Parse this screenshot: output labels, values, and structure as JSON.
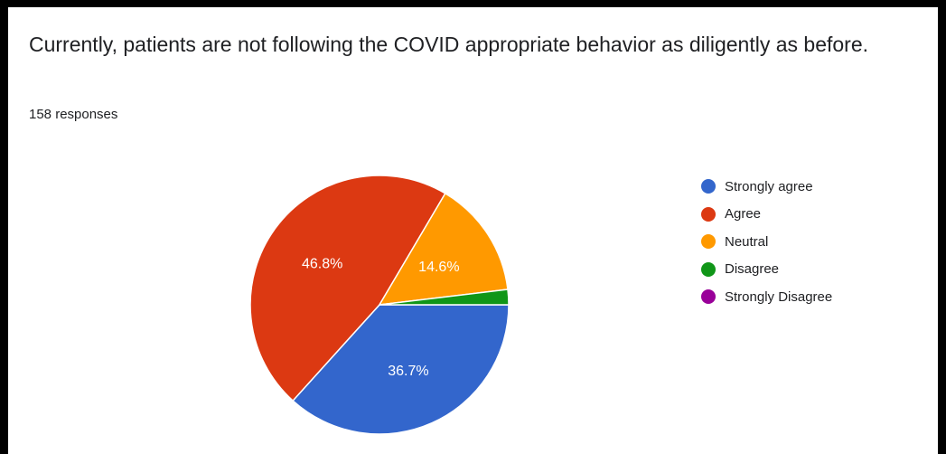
{
  "question": "Currently, patients are not following the COVID appropriate behavior as diligently as before.",
  "responses": "158 responses",
  "chart_data": {
    "type": "pie",
    "title": "Currently, patients are not following the COVID appropriate behavior as diligently as before.",
    "categories": [
      "Strongly agree",
      "Agree",
      "Neutral",
      "Disagree",
      "Strongly Disagree"
    ],
    "values": [
      36.7,
      46.8,
      14.6,
      1.9,
      0
    ],
    "data_labels": [
      "36.7%",
      "46.8%",
      "14.6%",
      "",
      ""
    ],
    "colors": [
      "#3366cc",
      "#dc3912",
      "#ff9900",
      "#109618",
      "#990099"
    ],
    "legend_position": "right"
  }
}
